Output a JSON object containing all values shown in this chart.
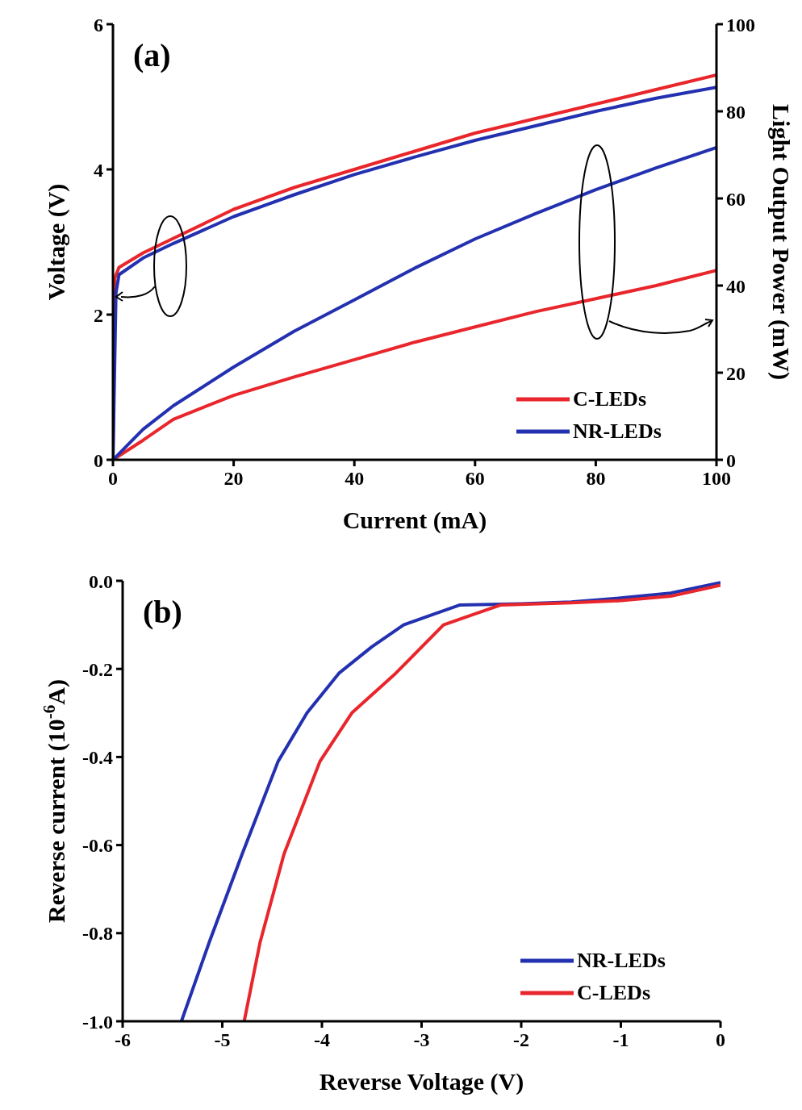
{
  "chart_data": [
    {
      "type": "line",
      "xlabel": "Current (mA)",
      "ylabel": "Voltage (V)",
      "y2label": "Light Output Power (mW)",
      "annotations": [
        "(a)"
      ],
      "xlim": [
        0,
        100
      ],
      "xticks": [
        0,
        20,
        40,
        60,
        80,
        100
      ],
      "ylim": [
        0,
        6
      ],
      "yticks": [
        0,
        2,
        4,
        6
      ],
      "y2lim": [
        0,
        100
      ],
      "y2ticks": [
        0,
        20,
        40,
        60,
        80,
        100
      ],
      "legend": "bottom right",
      "marker": "none",
      "line_style": "solid",
      "series": [
        {
          "name": "C-LEDs",
          "color": "#e8262b",
          "x": [
            0,
            0.3,
            1,
            5,
            10,
            20,
            30,
            40,
            50,
            60,
            70,
            80,
            90,
            100
          ],
          "values": [
            0,
            2.5,
            2.65,
            2.85,
            3.05,
            3.45,
            3.75,
            4.0,
            4.25,
            4.5,
            4.7,
            4.9,
            5.1,
            5.3
          ]
        },
        {
          "name": "NR-LEDs",
          "color": "#2331b0",
          "x": [
            0,
            0.5,
            1,
            5,
            10,
            20,
            30,
            40,
            50,
            60,
            70,
            80,
            90,
            100
          ],
          "values": [
            0,
            2.3,
            2.55,
            2.78,
            2.98,
            3.35,
            3.65,
            3.93,
            4.17,
            4.4,
            4.6,
            4.8,
            4.98,
            5.13
          ]
        },
        {
          "color": "#e8262b",
          "axis": "y2",
          "x": [
            0,
            5,
            10,
            20,
            30,
            40,
            50,
            60,
            70,
            80,
            90,
            100
          ],
          "values": [
            0,
            4.5,
            9.3,
            14.8,
            19,
            23,
            27,
            30.5,
            34,
            37,
            40,
            43.5
          ]
        },
        {
          "color": "#2331b0",
          "axis": "y2",
          "x": [
            0,
            5,
            10,
            20,
            30,
            40,
            50,
            60,
            70,
            80,
            90,
            100
          ],
          "values": [
            0,
            7,
            12.4,
            21.3,
            29.5,
            36.7,
            44,
            50.7,
            56.5,
            62,
            67,
            71.7
          ]
        }
      ]
    },
    {
      "type": "line",
      "xlabel": "Reverse Voltage (V)",
      "ylabel": "Reverse current (10$^{-6}$A)",
      "annotations": [
        "(b)"
      ],
      "xlim": [
        -6,
        0
      ],
      "xticks": [
        -6,
        -5,
        -4,
        -3,
        -2,
        -1,
        0
      ],
      "ylim": [
        -1,
        0
      ],
      "yticks": [
        {
          "value": 0,
          "label": "0.0"
        },
        -0.2,
        -0.4,
        -0.6,
        -0.8,
        {
          "value": -1,
          "label": "-1.0"
        }
      ],
      "legend": "bottom right",
      "marker": "none",
      "line_style": "solid",
      "series": [
        {
          "name": "NR-LEDs",
          "color": "#2331b0",
          "x": [
            -5.41,
            -5.13,
            -4.8,
            -4.44,
            -4.15,
            -3.83,
            -3.5,
            -3.18,
            -2.62,
            -2.0,
            -1.5,
            -1.0,
            -0.5,
            0
          ],
          "values": [
            -1,
            -0.82,
            -0.62,
            -0.41,
            -0.3,
            -0.21,
            -0.15,
            -0.1,
            -0.055,
            -0.052,
            -0.048,
            -0.039,
            -0.028,
            -0.004
          ]
        },
        {
          "name": "C-LEDs",
          "color": "#e8262b",
          "x": [
            -4.78,
            -4.62,
            -4.38,
            -4.02,
            -3.7,
            -3.26,
            -2.78,
            -2.21,
            -1.5,
            -1.0,
            -0.5,
            0
          ],
          "values": [
            -1,
            -0.82,
            -0.62,
            -0.41,
            -0.3,
            -0.21,
            -0.1,
            -0.055,
            -0.05,
            -0.045,
            -0.035,
            -0.01
          ]
        }
      ]
    }
  ]
}
